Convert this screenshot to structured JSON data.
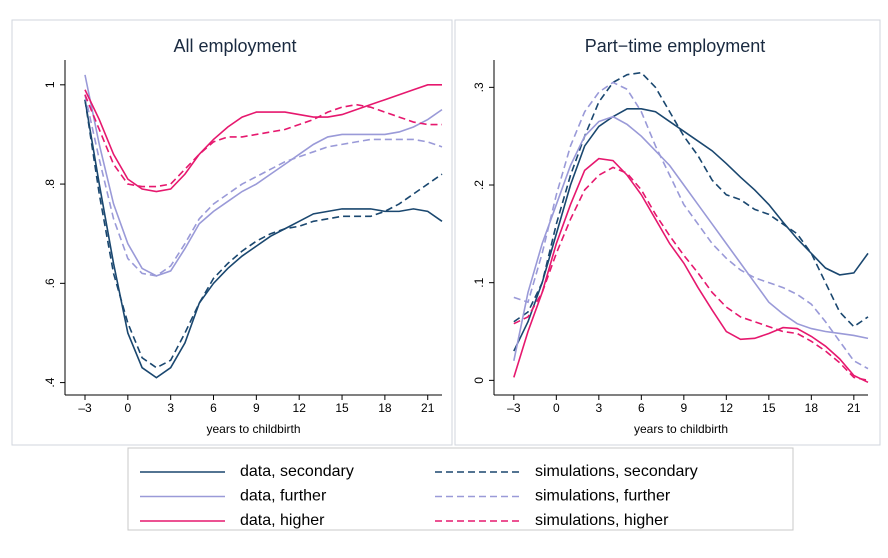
{
  "chart_data": [
    {
      "type": "line",
      "title": "All employment",
      "x_label": "years to childbirth",
      "x": [
        -3,
        -2,
        -1,
        0,
        1,
        2,
        3,
        4,
        5,
        6,
        7,
        8,
        9,
        10,
        11,
        12,
        13,
        14,
        15,
        16,
        17,
        18,
        19,
        20,
        21,
        22
      ],
      "xlim": [
        -4.4,
        22
      ],
      "ylim": [
        0.375,
        1.05
      ],
      "xticks": [
        {
          "value": -3,
          "label": "–3"
        },
        0,
        3,
        6,
        9,
        12,
        15,
        18,
        21
      ],
      "yticks": [
        {
          "value": 0.4,
          "label": ".4"
        },
        {
          "value": 0.6,
          "label": ".6"
        },
        {
          "value": 0.8,
          "label": ".8"
        },
        1
      ],
      "series": [
        {
          "name": "data, secondary",
          "color": "#1a476f",
          "dashed": false,
          "values": [
            0.97,
            0.8,
            0.64,
            0.5,
            0.43,
            0.41,
            0.43,
            0.48,
            0.56,
            0.6,
            0.63,
            0.655,
            0.675,
            0.695,
            0.71,
            0.725,
            0.74,
            0.745,
            0.75,
            0.75,
            0.75,
            0.745,
            0.745,
            0.75,
            0.745,
            0.725
          ]
        },
        {
          "name": "simulations, secondary",
          "color": "#1a476f",
          "dashed": true,
          "values": [
            0.97,
            0.78,
            0.62,
            0.52,
            0.45,
            0.43,
            0.445,
            0.5,
            0.56,
            0.61,
            0.64,
            0.665,
            0.685,
            0.7,
            0.71,
            0.715,
            0.725,
            0.73,
            0.735,
            0.735,
            0.735,
            0.745,
            0.76,
            0.78,
            0.8,
            0.82
          ]
        },
        {
          "name": "data, further",
          "color": "#9a9ad8",
          "dashed": false,
          "values": [
            1.02,
            0.88,
            0.76,
            0.68,
            0.63,
            0.615,
            0.625,
            0.67,
            0.72,
            0.745,
            0.765,
            0.785,
            0.8,
            0.82,
            0.84,
            0.86,
            0.88,
            0.895,
            0.9,
            0.9,
            0.9,
            0.9,
            0.905,
            0.915,
            0.93,
            0.95
          ]
        },
        {
          "name": "simulations, further",
          "color": "#9a9ad8",
          "dashed": true,
          "values": [
            0.98,
            0.85,
            0.73,
            0.65,
            0.62,
            0.615,
            0.635,
            0.68,
            0.73,
            0.76,
            0.78,
            0.8,
            0.815,
            0.83,
            0.845,
            0.855,
            0.865,
            0.875,
            0.88,
            0.885,
            0.89,
            0.89,
            0.89,
            0.89,
            0.885,
            0.875
          ]
        },
        {
          "name": "data, higher",
          "color": "#e6186e",
          "dashed": false,
          "values": [
            0.99,
            0.93,
            0.86,
            0.81,
            0.79,
            0.785,
            0.79,
            0.82,
            0.86,
            0.89,
            0.915,
            0.935,
            0.945,
            0.945,
            0.945,
            0.94,
            0.935,
            0.935,
            0.94,
            0.95,
            0.96,
            0.97,
            0.98,
            0.99,
            1.0,
            1.0
          ]
        },
        {
          "name": "simulations, higher",
          "color": "#e6186e",
          "dashed": true,
          "values": [
            0.98,
            0.91,
            0.84,
            0.8,
            0.795,
            0.795,
            0.8,
            0.83,
            0.86,
            0.885,
            0.895,
            0.895,
            0.9,
            0.905,
            0.91,
            0.92,
            0.93,
            0.945,
            0.955,
            0.96,
            0.955,
            0.945,
            0.935,
            0.925,
            0.92,
            0.92
          ]
        }
      ]
    },
    {
      "type": "line",
      "title": "Part−time employment",
      "x_label": "years to childbirth",
      "x": [
        -3,
        -2,
        -1,
        0,
        1,
        2,
        3,
        4,
        5,
        6,
        7,
        8,
        9,
        10,
        11,
        12,
        13,
        14,
        15,
        16,
        17,
        18,
        19,
        20,
        21,
        22
      ],
      "xlim": [
        -4.4,
        22
      ],
      "ylim": [
        -0.015,
        0.328
      ],
      "xticks": [
        {
          "value": -3,
          "label": "–3"
        },
        0,
        3,
        6,
        9,
        12,
        15,
        18,
        21
      ],
      "yticks": [
        0,
        {
          "value": 0.1,
          "label": ".1"
        },
        {
          "value": 0.2,
          "label": ".2"
        },
        {
          "value": 0.3,
          "label": ".3"
        }
      ],
      "series": [
        {
          "name": "data, secondary",
          "color": "#1a476f",
          "dashed": false,
          "values": [
            0.03,
            0.06,
            0.1,
            0.15,
            0.2,
            0.24,
            0.26,
            0.27,
            0.278,
            0.278,
            0.275,
            0.265,
            0.255,
            0.245,
            0.235,
            0.222,
            0.208,
            0.195,
            0.18,
            0.162,
            0.145,
            0.13,
            0.115,
            0.108,
            0.11,
            0.13
          ]
        },
        {
          "name": "simulations, secondary",
          "color": "#1a476f",
          "dashed": true,
          "values": [
            0.06,
            0.07,
            0.1,
            0.16,
            0.21,
            0.25,
            0.285,
            0.305,
            0.313,
            0.315,
            0.3,
            0.275,
            0.25,
            0.23,
            0.205,
            0.19,
            0.185,
            0.175,
            0.17,
            0.16,
            0.15,
            0.13,
            0.1,
            0.07,
            0.055,
            0.065
          ]
        },
        {
          "name": "data, further",
          "color": "#9a9ad8",
          "dashed": false,
          "values": [
            0.02,
            0.09,
            0.14,
            0.18,
            0.22,
            0.25,
            0.265,
            0.27,
            0.262,
            0.25,
            0.235,
            0.22,
            0.2,
            0.18,
            0.16,
            0.14,
            0.12,
            0.1,
            0.08,
            0.068,
            0.058,
            0.053,
            0.05,
            0.048,
            0.046,
            0.043
          ]
        },
        {
          "name": "simulations, further",
          "color": "#9a9ad8",
          "dashed": true,
          "values": [
            0.085,
            0.08,
            0.13,
            0.19,
            0.24,
            0.275,
            0.295,
            0.305,
            0.298,
            0.275,
            0.24,
            0.21,
            0.18,
            0.16,
            0.14,
            0.125,
            0.113,
            0.105,
            0.1,
            0.095,
            0.088,
            0.078,
            0.06,
            0.04,
            0.02,
            0.012
          ]
        },
        {
          "name": "data, higher",
          "color": "#e6186e",
          "dashed": false,
          "values": [
            0.003,
            0.05,
            0.09,
            0.14,
            0.18,
            0.215,
            0.227,
            0.225,
            0.21,
            0.19,
            0.165,
            0.14,
            0.12,
            0.095,
            0.072,
            0.05,
            0.042,
            0.043,
            0.048,
            0.054,
            0.053,
            0.045,
            0.035,
            0.022,
            0.005,
            -0.002
          ]
        },
        {
          "name": "simulations, higher",
          "color": "#e6186e",
          "dashed": true,
          "values": [
            0.058,
            0.065,
            0.09,
            0.13,
            0.165,
            0.195,
            0.21,
            0.218,
            0.212,
            0.195,
            0.17,
            0.148,
            0.128,
            0.11,
            0.09,
            0.075,
            0.065,
            0.06,
            0.055,
            0.05,
            0.048,
            0.04,
            0.03,
            0.018,
            0.003,
            0
          ]
        }
      ]
    }
  ]
}
